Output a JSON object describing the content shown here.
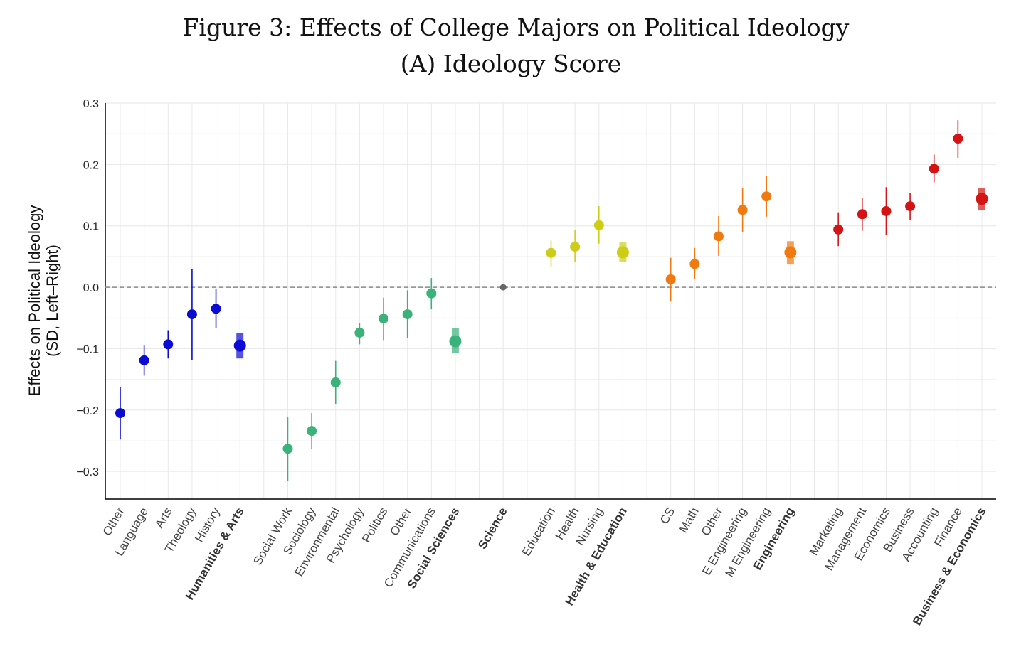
{
  "chart_data": {
    "type": "scatter",
    "title": "Figure 3: Effects of College Majors on Political Ideology",
    "subtitle": "(A) Ideology Score",
    "xlabel": "",
    "ylabel": [
      "Effects on Political Ideology",
      "(SD, Left–Right)"
    ],
    "ylim": [
      -0.345,
      0.3
    ],
    "yticks": [
      0.3,
      0.2,
      0.1,
      0.0,
      -0.1,
      -0.2,
      -0.3
    ],
    "ytick_labels": [
      "0.3",
      "0.2",
      "0.1",
      "0.0",
      "−0.1",
      "−0.2",
      "−0.3"
    ],
    "grid": true,
    "reference_line": 0,
    "groups": [
      {
        "name": "Humanities & Arts",
        "color": "#0b0bd4",
        "estimate": -0.095,
        "ci": [
          -0.116,
          -0.074
        ],
        "majors": [
          {
            "label": "Other",
            "value": -0.205,
            "ci": [
              -0.248,
              -0.162
            ]
          },
          {
            "label": "Language",
            "value": -0.119,
            "ci": [
              -0.144,
              -0.095
            ]
          },
          {
            "label": "Arts",
            "value": -0.093,
            "ci": [
              -0.116,
              -0.07
            ]
          },
          {
            "label": "Theology",
            "value": -0.044,
            "ci": [
              -0.119,
              0.03
            ]
          },
          {
            "label": "History",
            "value": -0.035,
            "ci": [
              -0.066,
              -0.003
            ]
          }
        ]
      },
      {
        "name": "Social Sciences",
        "color": "#3bb27a",
        "estimate": -0.088,
        "ci": [
          -0.107,
          -0.067
        ],
        "majors": [
          {
            "label": "Social Work",
            "value": -0.263,
            "ci": [
              -0.316,
              -0.212
            ]
          },
          {
            "label": "Sociology",
            "value": -0.234,
            "ci": [
              -0.263,
              -0.205
            ]
          },
          {
            "label": "Environmental",
            "value": -0.155,
            "ci": [
              -0.191,
              -0.12
            ]
          },
          {
            "label": "Psychology",
            "value": -0.074,
            "ci": [
              -0.093,
              -0.058
            ]
          },
          {
            "label": "Politics",
            "value": -0.051,
            "ci": [
              -0.086,
              -0.017
            ]
          },
          {
            "label": "Other",
            "value": -0.044,
            "ci": [
              -0.083,
              -0.005
            ]
          },
          {
            "label": "Communications",
            "value": -0.01,
            "ci": [
              -0.036,
              0.015
            ]
          }
        ]
      },
      {
        "name": "Science",
        "color": "#666666",
        "estimate": 0.0,
        "ci": [
          0.0,
          0.0
        ],
        "reference": true,
        "majors": []
      },
      {
        "name": "Health & Education",
        "color": "#cdcd18",
        "estimate": 0.057,
        "ci": [
          0.041,
          0.073
        ],
        "majors": [
          {
            "label": "Education",
            "value": 0.056,
            "ci": [
              0.034,
              0.076
            ]
          },
          {
            "label": "Health",
            "value": 0.066,
            "ci": [
              0.041,
              0.093
            ]
          },
          {
            "label": "Nursing",
            "value": 0.101,
            "ci": [
              0.071,
              0.132
            ]
          }
        ]
      },
      {
        "name": "Engineering",
        "color": "#f07a12",
        "estimate": 0.057,
        "ci": [
          0.037,
          0.075
        ],
        "majors": [
          {
            "label": "CS",
            "value": 0.013,
            "ci": [
              -0.023,
              0.048
            ]
          },
          {
            "label": "Math",
            "value": 0.038,
            "ci": [
              0.014,
              0.064
            ]
          },
          {
            "label": "Other",
            "value": 0.083,
            "ci": [
              0.051,
              0.116
            ]
          },
          {
            "label": "E Engineering",
            "value": 0.126,
            "ci": [
              0.09,
              0.162
            ]
          },
          {
            "label": "M Engineering",
            "value": 0.148,
            "ci": [
              0.115,
              0.181
            ]
          }
        ]
      },
      {
        "name": "Business & Economics",
        "color": "#d41414",
        "estimate": 0.144,
        "ci": [
          0.126,
          0.161
        ],
        "majors": [
          {
            "label": "Marketing",
            "value": 0.094,
            "ci": [
              0.067,
              0.122
            ]
          },
          {
            "label": "Management",
            "value": 0.119,
            "ci": [
              0.092,
              0.146
            ]
          },
          {
            "label": "Economics",
            "value": 0.124,
            "ci": [
              0.085,
              0.163
            ]
          },
          {
            "label": "Business",
            "value": 0.132,
            "ci": [
              0.11,
              0.154
            ]
          },
          {
            "label": "Accounting",
            "value": 0.193,
            "ci": [
              0.171,
              0.216
            ]
          },
          {
            "label": "Finance",
            "value": 0.242,
            "ci": [
              0.211,
              0.272
            ]
          }
        ]
      }
    ]
  }
}
